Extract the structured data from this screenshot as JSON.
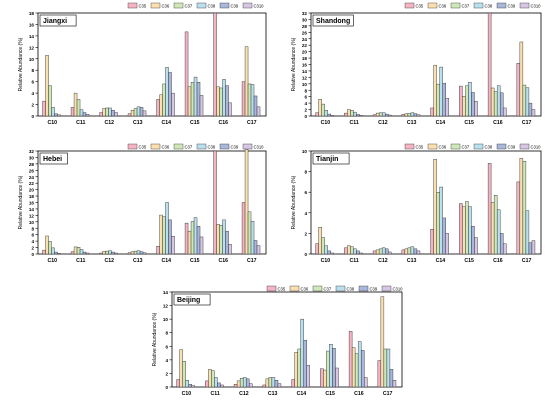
{
  "colors": {
    "C35": "#f4b4c4",
    "C36": "#fae0b0",
    "C37": "#cfe8b8",
    "C38": "#b9e0ee",
    "C39": "#a9b7dd",
    "C310": "#d8c6e4"
  },
  "chart_data": [
    {
      "type": "bar",
      "title": "Jiangxi",
      "ylabel": "Relative Abundance (%)",
      "ylim": [
        0,
        18
      ],
      "yticks": [
        0,
        2,
        4,
        6,
        8,
        10,
        12,
        14,
        16,
        18
      ],
      "categories": [
        "C10",
        "C11",
        "C12",
        "C13",
        "C14",
        "C15",
        "C16",
        "C17"
      ],
      "series": [
        {
          "name": "C35",
          "values": [
            2.6,
            1.5,
            0.6,
            0.4,
            2.9,
            14.7,
            18.0,
            6.0
          ]
        },
        {
          "name": "C36",
          "values": [
            10.6,
            4.0,
            1.3,
            1.0,
            3.7,
            5.1,
            5.1,
            12.1
          ]
        },
        {
          "name": "C37",
          "values": [
            5.3,
            2.9,
            1.4,
            1.3,
            5.6,
            5.9,
            4.9,
            5.6
          ]
        },
        {
          "name": "C38",
          "values": [
            1.5,
            1.1,
            1.4,
            1.6,
            8.5,
            6.8,
            6.4,
            5.5
          ]
        },
        {
          "name": "C39",
          "values": [
            0.4,
            0.6,
            1.0,
            1.5,
            7.6,
            5.9,
            5.3,
            3.5
          ]
        },
        {
          "name": "C310",
          "values": [
            0.2,
            0.3,
            0.6,
            0.9,
            4.0,
            3.6,
            2.3,
            1.6
          ]
        }
      ]
    },
    {
      "type": "bar",
      "title": "Shandong",
      "ylabel": "Relative Abundance (%)",
      "ylim": [
        0,
        32
      ],
      "yticks": [
        0,
        2,
        4,
        6,
        8,
        10,
        12,
        14,
        16,
        18,
        20,
        22,
        24,
        26,
        28,
        30,
        32
      ],
      "categories": [
        "C10",
        "C11",
        "C12",
        "C13",
        "C14",
        "C15",
        "C16",
        "C17"
      ],
      "series": [
        {
          "name": "C35",
          "values": [
            1.0,
            0.9,
            0.4,
            0.5,
            2.5,
            9.3,
            32.0,
            16.4
          ]
        },
        {
          "name": "C36",
          "values": [
            5.2,
            2.0,
            0.9,
            0.7,
            15.8,
            6.1,
            8.7,
            23.0
          ]
        },
        {
          "name": "C37",
          "values": [
            3.7,
            1.8,
            1.0,
            0.8,
            9.9,
            9.4,
            7.6,
            9.6
          ]
        },
        {
          "name": "C38",
          "values": [
            1.8,
            1.2,
            1.0,
            1.0,
            15.2,
            10.5,
            9.4,
            8.8
          ]
        },
        {
          "name": "C39",
          "values": [
            0.6,
            0.5,
            0.6,
            0.7,
            10.2,
            7.3,
            7.2,
            4.0
          ]
        },
        {
          "name": "C310",
          "values": [
            0.2,
            0.2,
            0.3,
            0.4,
            5.5,
            4.6,
            2.5,
            2.0
          ]
        }
      ]
    },
    {
      "type": "bar",
      "title": "Hebei",
      "ylabel": "Relative Abundance (%)",
      "ylim": [
        0,
        32
      ],
      "yticks": [
        0,
        2,
        4,
        6,
        8,
        10,
        12,
        14,
        16,
        18,
        20,
        22,
        24,
        26,
        28,
        30,
        32
      ],
      "categories": [
        "C10",
        "C11",
        "C12",
        "C13",
        "C14",
        "C15",
        "C16",
        "C17"
      ],
      "series": [
        {
          "name": "C35",
          "values": [
            1.2,
            0.7,
            0.3,
            0.4,
            2.4,
            9.6,
            32.0,
            16.0
          ]
        },
        {
          "name": "C36",
          "values": [
            5.6,
            2.2,
            0.8,
            0.7,
            12.1,
            7.1,
            9.2,
            32.5
          ]
        },
        {
          "name": "C37",
          "values": [
            3.9,
            2.1,
            0.9,
            0.9,
            11.6,
            10.1,
            8.9,
            13.1
          ]
        },
        {
          "name": "C38",
          "values": [
            1.9,
            1.4,
            1.0,
            1.0,
            16.0,
            11.3,
            10.6,
            10.2
          ]
        },
        {
          "name": "C39",
          "values": [
            0.6,
            0.6,
            0.6,
            0.7,
            10.6,
            8.6,
            7.1,
            4.2
          ]
        },
        {
          "name": "C310",
          "values": [
            0.2,
            0.3,
            0.3,
            0.4,
            5.5,
            5.3,
            3.0,
            2.6
          ]
        }
      ]
    },
    {
      "type": "bar",
      "title": "Tianjin",
      "ylabel": "Relative Abundance (%)",
      "ylim": [
        0,
        10
      ],
      "yticks": [
        0,
        2,
        4,
        6,
        8,
        10
      ],
      "categories": [
        "C10",
        "C11",
        "C12",
        "C13",
        "C14",
        "C15",
        "C16",
        "C17"
      ],
      "series": [
        {
          "name": "C35",
          "values": [
            1.0,
            0.6,
            0.3,
            0.4,
            2.4,
            4.9,
            8.8,
            7.0
          ]
        },
        {
          "name": "C36",
          "values": [
            2.6,
            0.8,
            0.4,
            0.5,
            9.2,
            4.6,
            5.0,
            9.3
          ]
        },
        {
          "name": "C37",
          "values": [
            1.6,
            0.7,
            0.5,
            0.6,
            6.0,
            5.1,
            5.7,
            9.0
          ]
        },
        {
          "name": "C38",
          "values": [
            0.8,
            0.5,
            0.6,
            0.7,
            6.5,
            4.6,
            4.3,
            4.2
          ]
        },
        {
          "name": "C39",
          "values": [
            0.3,
            0.3,
            0.5,
            0.5,
            3.5,
            2.7,
            2.0,
            1.1
          ]
        },
        {
          "name": "C310",
          "values": [
            0.1,
            0.1,
            0.2,
            0.3,
            2.0,
            1.6,
            1.0,
            1.3
          ]
        }
      ]
    },
    {
      "type": "bar",
      "title": "Beijing",
      "ylabel": "Relative Abundance (%)",
      "ylim": [
        0,
        14
      ],
      "yticks": [
        0,
        2,
        4,
        6,
        8,
        10,
        12,
        14
      ],
      "categories": [
        "C10",
        "C11",
        "C12",
        "C13",
        "C14",
        "C15",
        "C16",
        "C17"
      ],
      "series": [
        {
          "name": "C35",
          "values": [
            1.1,
            0.9,
            0.4,
            0.3,
            1.1,
            2.7,
            8.2,
            3.9
          ]
        },
        {
          "name": "C36",
          "values": [
            5.5,
            2.6,
            0.9,
            1.2,
            5.1,
            2.5,
            5.8,
            13.3
          ]
        },
        {
          "name": "C37",
          "values": [
            3.8,
            2.4,
            1.3,
            1.4,
            5.6,
            5.3,
            4.9,
            5.6
          ]
        },
        {
          "name": "C38",
          "values": [
            1.0,
            1.4,
            1.4,
            1.4,
            10.0,
            6.3,
            6.7,
            5.6
          ]
        },
        {
          "name": "C39",
          "values": [
            0.4,
            0.6,
            1.2,
            1.0,
            6.9,
            5.7,
            5.4,
            2.6
          ]
        },
        {
          "name": "C310",
          "values": [
            0.2,
            0.3,
            0.5,
            0.5,
            3.2,
            2.8,
            1.4,
            1.0
          ]
        }
      ]
    }
  ]
}
